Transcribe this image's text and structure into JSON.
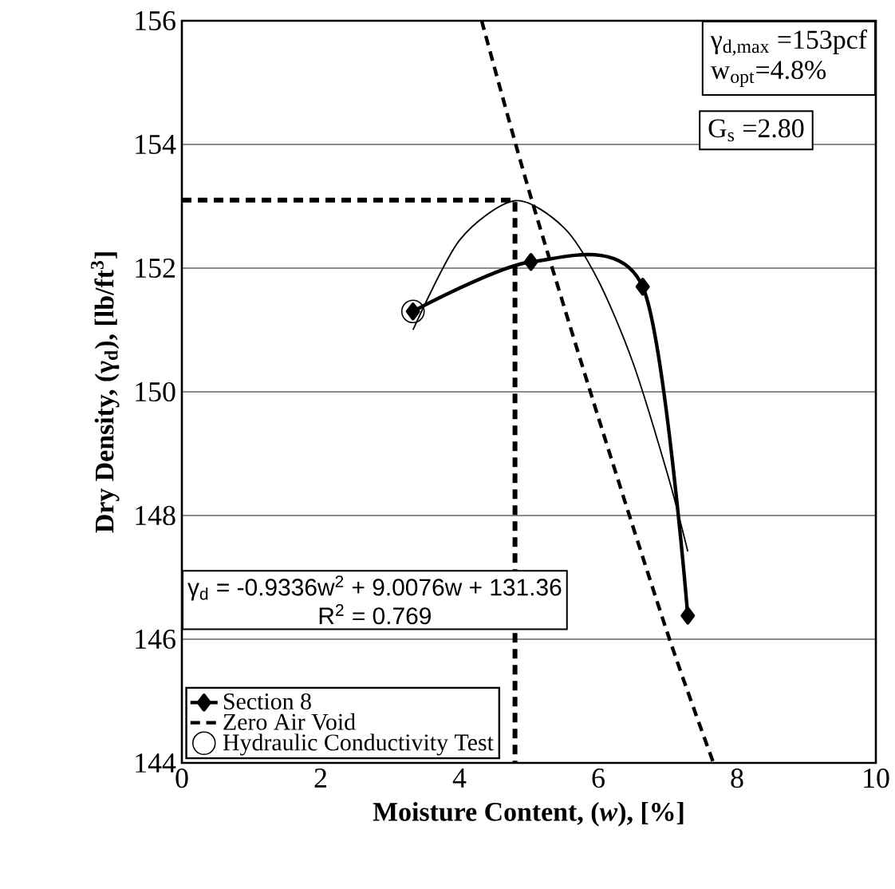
{
  "chart_data": {
    "type": "line",
    "xlabel": "Moisture Content, (*w*), [%]",
    "ylabel": "Dry Density, (γ$_{d}$), [lb/ft$^{3}$]",
    "xlim": [
      0,
      10
    ],
    "ylim": [
      144,
      156
    ],
    "xticks": [
      0,
      2,
      4,
      6,
      8,
      10
    ],
    "yticks": [
      144,
      146,
      148,
      150,
      152,
      154,
      156
    ],
    "grid": "y",
    "legend": "bottom left",
    "series": [
      {
        "name": "Section 8",
        "color": "#000000",
        "marker": "diamond",
        "line_style": "solid",
        "x": [
          3.33,
          5.03,
          6.64,
          7.29
        ],
        "values": [
          151.3,
          152.1,
          151.7,
          146.38
        ]
      },
      {
        "name": "Zero Air Void",
        "color": "#000000",
        "marker": "none",
        "line_style": "dashed",
        "x": [
          4.32,
          5.0,
          6.0,
          7.0,
          7.66
        ],
        "values": [
          156.0,
          153.26,
          149.59,
          146.09,
          144.0
        ]
      },
      {
        "name": "Hydraulic Conductivity Test",
        "type": "scatter",
        "color": "#000000",
        "marker": "circle",
        "x": [
          3.33
        ],
        "values": [
          151.3
        ]
      },
      {
        "color": "#000000",
        "marker": "none",
        "line_style": "solid",
        "x": [
          3.33,
          4.0,
          4.8,
          5.5,
          6.0,
          6.5,
          7.0,
          7.29
        ],
        "values": [
          151.0,
          152.45,
          153.09,
          152.66,
          151.8,
          150.47,
          148.66,
          147.42
        ]
      },
      {
        "color": "#000000",
        "marker": "none",
        "line_style": "dashed",
        "x": [
          0,
          4.8,
          4.8
        ],
        "values": [
          153.1,
          153.1,
          144
        ]
      }
    ],
    "annotations": [
      "γ$_{d,max}$ =153pcf",
      "w$_{opt}$=4.8%",
      "G$_{s}$ =2.80",
      "γ$_{d}$ = -0.9336w$^{2}$ + 9.0076w + 131.36",
      "R$^{2}$ = 0.769"
    ]
  }
}
